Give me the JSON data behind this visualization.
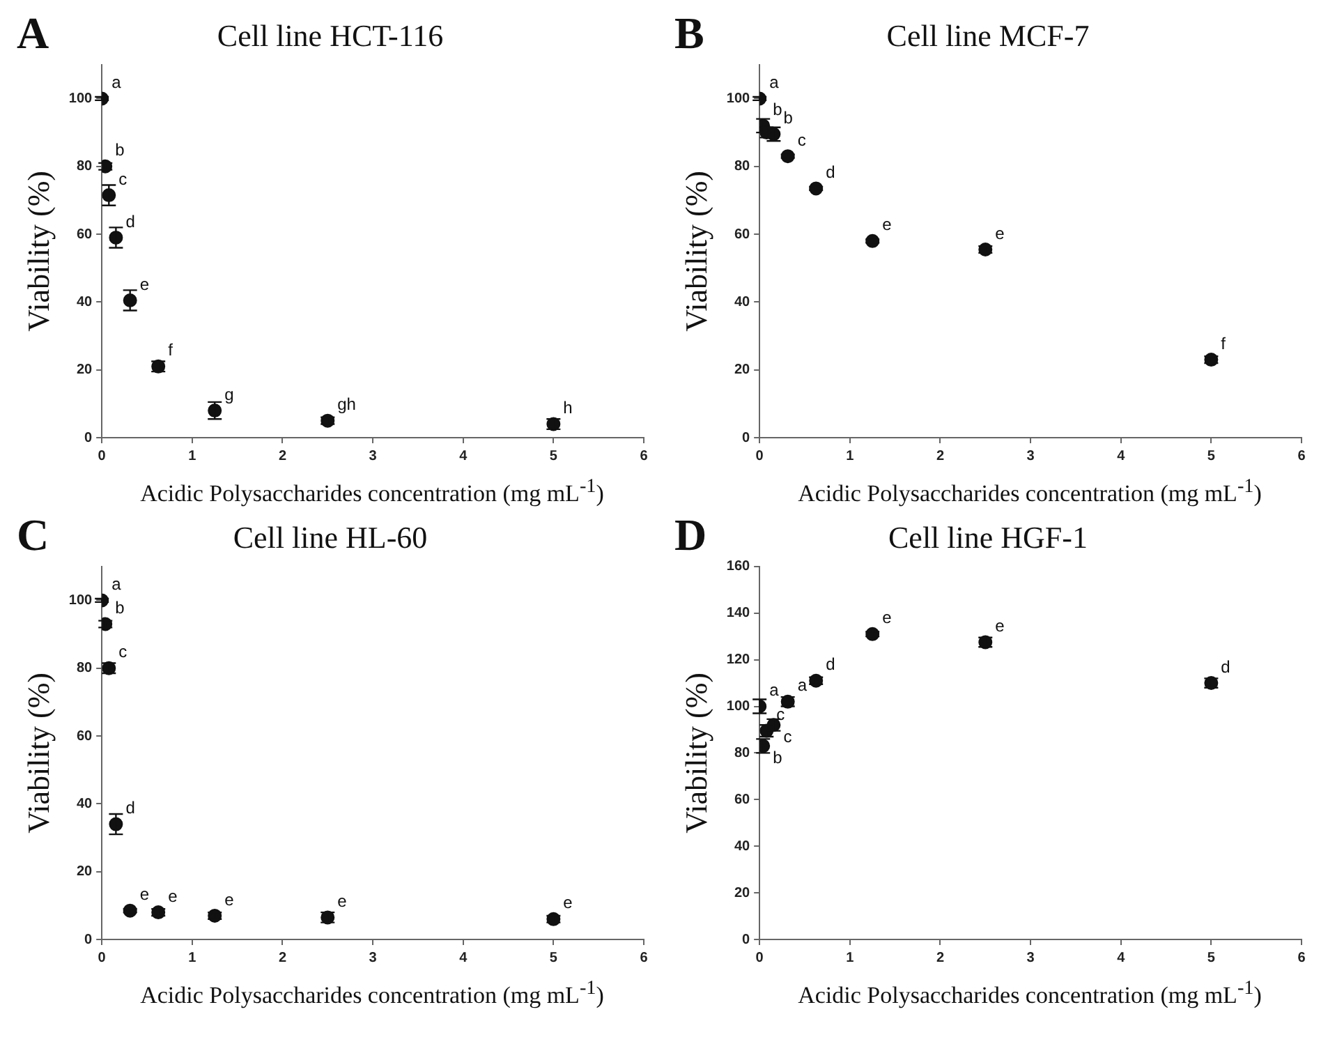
{
  "chart_data": [
    {
      "type": "scatter",
      "title": "Cell line HCT-116",
      "xlabel": "Acidic Polysaccharides concentration (mg mL$^{-1}$)",
      "ylabel": "Viability (%)",
      "x": [
        0,
        0.039,
        0.078,
        0.156,
        0.3125,
        0.625,
        1.25,
        2.5,
        5
      ],
      "series": [
        {
          "color": "#111111",
          "values": [
            100,
            80,
            71.5,
            59,
            40.5,
            21,
            8,
            5,
            4
          ],
          "errors": [
            0.5,
            1,
            3,
            3,
            3,
            1.5,
            2.5,
            1,
            1.5
          ]
        }
      ],
      "xlim": [
        0,
        6
      ],
      "xticks": [
        0,
        1,
        2,
        3,
        4,
        5,
        6
      ],
      "ylim": [
        0,
        110
      ],
      "yticks": [
        0,
        20,
        40,
        60,
        80,
        100
      ],
      "grid": false,
      "legend": false,
      "marker": "circle",
      "annotations": [
        "A",
        {
          "text": "a",
          "x": 0,
          "y": 100
        },
        {
          "text": "b",
          "x": 0.039,
          "y": 80
        },
        {
          "text": "c",
          "x": 0.078,
          "y": 71.5
        },
        {
          "text": "d",
          "x": 0.156,
          "y": 59
        },
        {
          "text": "e",
          "x": 0.3125,
          "y": 40.5
        },
        {
          "text": "f",
          "x": 0.625,
          "y": 21
        },
        {
          "text": "g",
          "x": 1.25,
          "y": 8
        },
        {
          "text": "gh",
          "x": 2.5,
          "y": 5
        },
        {
          "text": "h",
          "x": 5,
          "y": 4
        }
      ]
    },
    {
      "type": "scatter",
      "title": "Cell line MCF-7",
      "xlabel": "Acidic Polysaccharides concentration (mg mL$^{-1}$)",
      "ylabel": "Viability (%)",
      "x": [
        0,
        0.039,
        0.078,
        0.156,
        0.3125,
        0.625,
        1.25,
        2.5,
        5
      ],
      "series": [
        {
          "color": "#111111",
          "values": [
            100,
            92,
            90,
            89.5,
            83,
            73.5,
            58,
            55.5,
            23
          ],
          "errors": [
            0.5,
            2,
            1.5,
            2,
            0.5,
            0.5,
            0.5,
            1,
            1
          ]
        }
      ],
      "xlim": [
        0,
        6
      ],
      "xticks": [
        0,
        1,
        2,
        3,
        4,
        5,
        6
      ],
      "ylim": [
        0,
        110
      ],
      "yticks": [
        0,
        20,
        40,
        60,
        80,
        100
      ],
      "grid": false,
      "legend": false,
      "marker": "circle",
      "annotations": [
        "B",
        {
          "text": "a",
          "x": 0,
          "y": 100
        },
        {
          "text": "b",
          "x": 0.039,
          "y": 92
        },
        {
          "text": "b",
          "x": 0.156,
          "y": 89.5
        },
        {
          "text": "c",
          "x": 0.3125,
          "y": 83
        },
        {
          "text": "d",
          "x": 0.625,
          "y": 73.5
        },
        {
          "text": "e",
          "x": 1.25,
          "y": 58
        },
        {
          "text": "e",
          "x": 2.5,
          "y": 55.5
        },
        {
          "text": "f",
          "x": 5,
          "y": 23
        }
      ]
    },
    {
      "type": "scatter",
      "title": "Cell line HL-60",
      "xlabel": "Acidic Polysaccharides concentration (mg mL$^{-1}$)",
      "ylabel": "Viability (%)",
      "x": [
        0,
        0.039,
        0.078,
        0.156,
        0.3125,
        0.625,
        1.25,
        2.5,
        5
      ],
      "series": [
        {
          "color": "#111111",
          "values": [
            100,
            93,
            80,
            34,
            8.5,
            8,
            7,
            6.5,
            6
          ],
          "errors": [
            0.5,
            1,
            1.5,
            3,
            0.5,
            1,
            1,
            1.5,
            1
          ]
        }
      ],
      "xlim": [
        0,
        6
      ],
      "xticks": [
        0,
        1,
        2,
        3,
        4,
        5,
        6
      ],
      "ylim": [
        0,
        110
      ],
      "yticks": [
        0,
        20,
        40,
        60,
        80,
        100
      ],
      "grid": false,
      "legend": false,
      "marker": "circle",
      "annotations": [
        "C",
        {
          "text": "a",
          "x": 0,
          "y": 100
        },
        {
          "text": "b",
          "x": 0.039,
          "y": 93
        },
        {
          "text": "c",
          "x": 0.078,
          "y": 80
        },
        {
          "text": "d",
          "x": 0.156,
          "y": 34
        },
        {
          "text": "e",
          "x": 0.3125,
          "y": 8.5
        },
        {
          "text": "e",
          "x": 0.625,
          "y": 8
        },
        {
          "text": "e",
          "x": 1.25,
          "y": 7
        },
        {
          "text": "e",
          "x": 2.5,
          "y": 6.5
        },
        {
          "text": "e",
          "x": 5,
          "y": 6
        }
      ]
    },
    {
      "type": "scatter",
      "title": "Cell line HGF-1",
      "xlabel": "Acidic Polysaccharides concentration (mg mL$^{-1}$)",
      "ylabel": "Viability (%)",
      "x": [
        0,
        0.039,
        0.078,
        0.156,
        0.3125,
        0.625,
        1.25,
        2.5,
        5
      ],
      "series": [
        {
          "color": "#111111",
          "values": [
            100,
            83,
            89.5,
            92,
            102,
            111,
            131,
            127.5,
            110
          ],
          "errors": [
            3,
            3,
            2.5,
            2.5,
            2,
            1.5,
            1,
            2,
            2
          ]
        }
      ],
      "xlim": [
        0,
        6
      ],
      "xticks": [
        0,
        1,
        2,
        3,
        4,
        5,
        6
      ],
      "ylim": [
        0,
        160
      ],
      "yticks": [
        0,
        20,
        40,
        60,
        80,
        100,
        120,
        140,
        160
      ],
      "grid": false,
      "legend": false,
      "marker": "circle",
      "annotations": [
        "D",
        {
          "text": "a",
          "x": 0,
          "y": 100
        },
        {
          "text": "b",
          "x": 0.039,
          "y": 83
        },
        {
          "text": "c",
          "x": 0.078,
          "y": 89.5
        },
        {
          "text": "c",
          "x": 0.156,
          "y": 92
        },
        {
          "text": "a",
          "x": 0.3125,
          "y": 102
        },
        {
          "text": "d",
          "x": 0.625,
          "y": 111
        },
        {
          "text": "e",
          "x": 1.25,
          "y": 131
        },
        {
          "text": "e",
          "x": 2.5,
          "y": 127.5
        },
        {
          "text": "d",
          "x": 5,
          "y": 110
        }
      ]
    }
  ]
}
